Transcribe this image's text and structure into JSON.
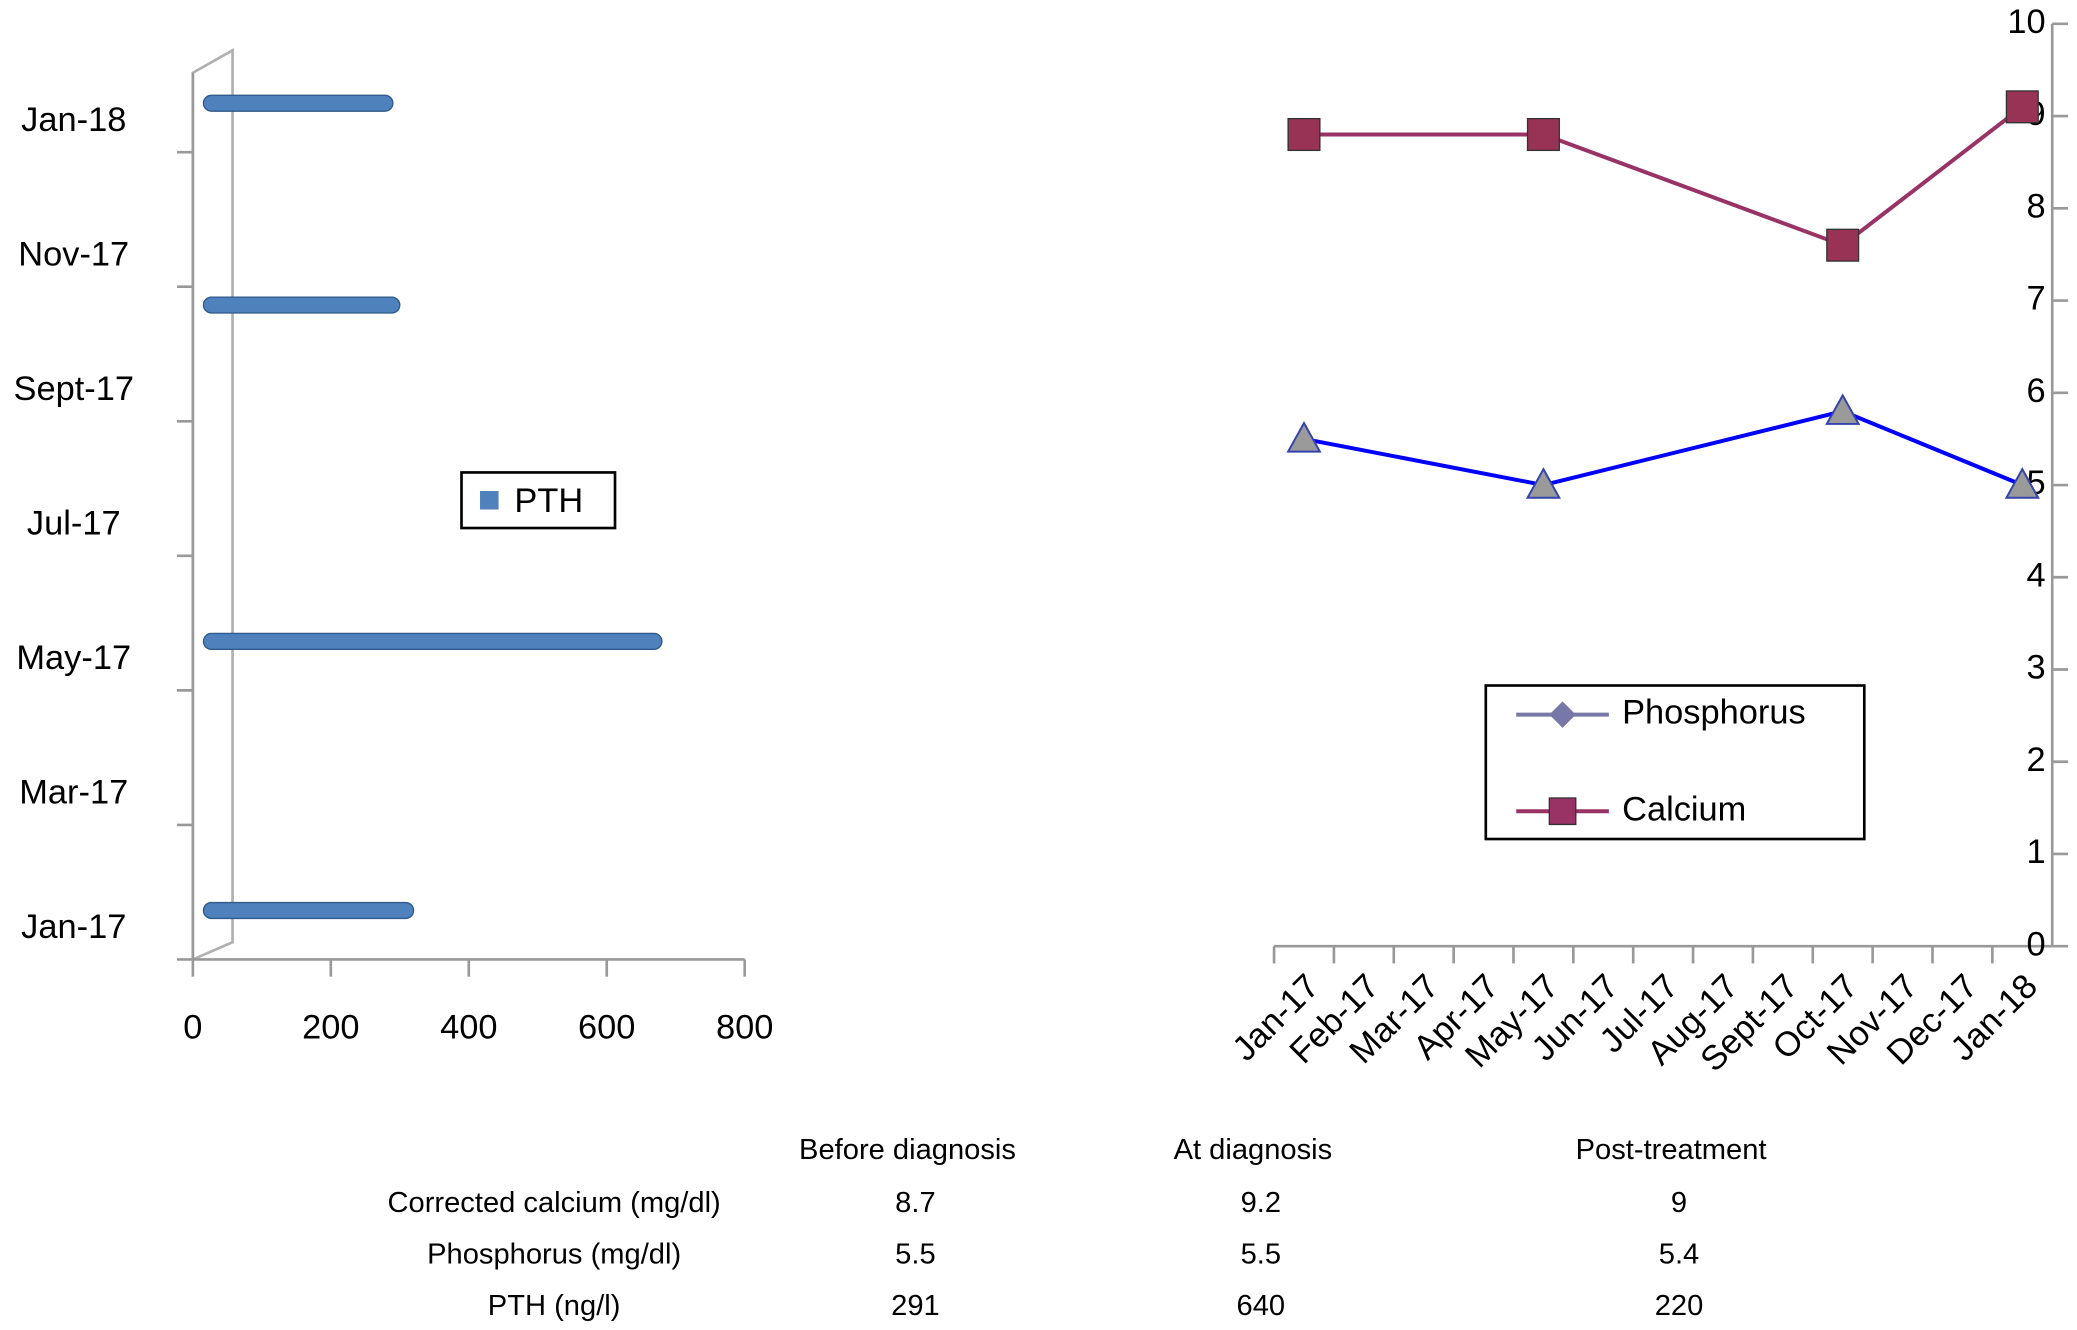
{
  "chart_data": [
    {
      "type": "hbar",
      "categories": [
        "Jan-17",
        null,
        "Mar-17",
        null,
        "May-17",
        null,
        "Jul-17",
        null,
        "Sept-17",
        null,
        "Nov-17",
        null,
        "Jan-18"
      ],
      "series": [
        {
          "name": "PTH",
          "color": "#4f81bd",
          "values": [
            320,
            null,
            null,
            null,
            680,
            null,
            null,
            null,
            null,
            300,
            null,
            null,
            290
          ]
        }
      ],
      "xlim": [
        0,
        800
      ],
      "xticks": [
        0,
        200,
        400,
        600,
        800
      ]
    },
    {
      "type": "line",
      "categories": [
        "Jan-17",
        "Feb-17",
        "Mar-17",
        "Apr-17",
        "May-17",
        "Jun-17",
        "Jul-17",
        "Aug-17",
        "Sept-17",
        "Oct-17",
        "Nov-17",
        "Dec-17",
        "Jan-18"
      ],
      "series": [
        {
          "name": "Phosphorus",
          "color": "#0000ff",
          "marker_color": "#9a9a9a",
          "values": [
            5.5,
            null,
            null,
            null,
            5.0,
            null,
            null,
            null,
            null,
            5.8,
            null,
            null,
            5.0
          ]
        },
        {
          "name": "Calcium",
          "color": "#993366",
          "marker_color": "#993355",
          "values": [
            8.8,
            null,
            null,
            null,
            8.8,
            null,
            null,
            null,
            null,
            7.6,
            null,
            null,
            9.1
          ]
        }
      ],
      "ylim": [
        0,
        10
      ],
      "yticks": [
        0,
        1,
        2,
        3,
        4,
        5,
        6,
        7,
        8,
        9,
        10
      ]
    }
  ],
  "table": {
    "columns": [
      "Before diagnosis",
      "At diagnosis",
      "Post-treatment"
    ],
    "rows": [
      [
        "Corrected calcium (mg/dl)",
        "8.7",
        "9.2",
        "9"
      ],
      [
        "Phosphorus (mg/dl)",
        "5.5",
        "5.5",
        "5.4"
      ],
      [
        "PTH (ng/l)",
        "291",
        "640",
        "220"
      ]
    ]
  }
}
